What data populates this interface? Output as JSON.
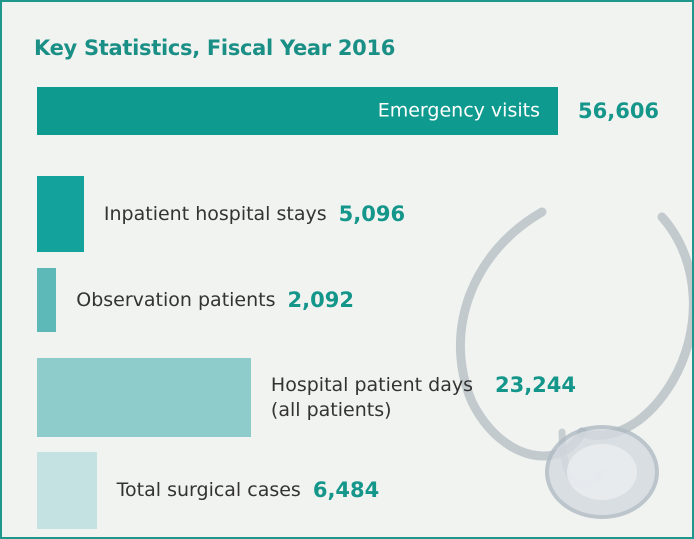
{
  "chart_data": {
    "type": "bar",
    "orientation": "horizontal",
    "title": "Key Statistics, Fiscal Year 2016",
    "categories": [
      "Emergency visits",
      "Inpatient hospital stays",
      "Observation patients",
      "Hospital patient days\n(all patients)",
      "Total surgical cases"
    ],
    "values": [
      56606,
      5096,
      2092,
      23244,
      6484
    ],
    "value_labels": [
      "56,606",
      "5,096",
      "2,092",
      "23,244",
      "6,484"
    ],
    "colors": [
      "#0f9a8f",
      "#14a39c",
      "#5cb9b7",
      "#8ecbcb",
      "#c4e2e2"
    ]
  }
}
